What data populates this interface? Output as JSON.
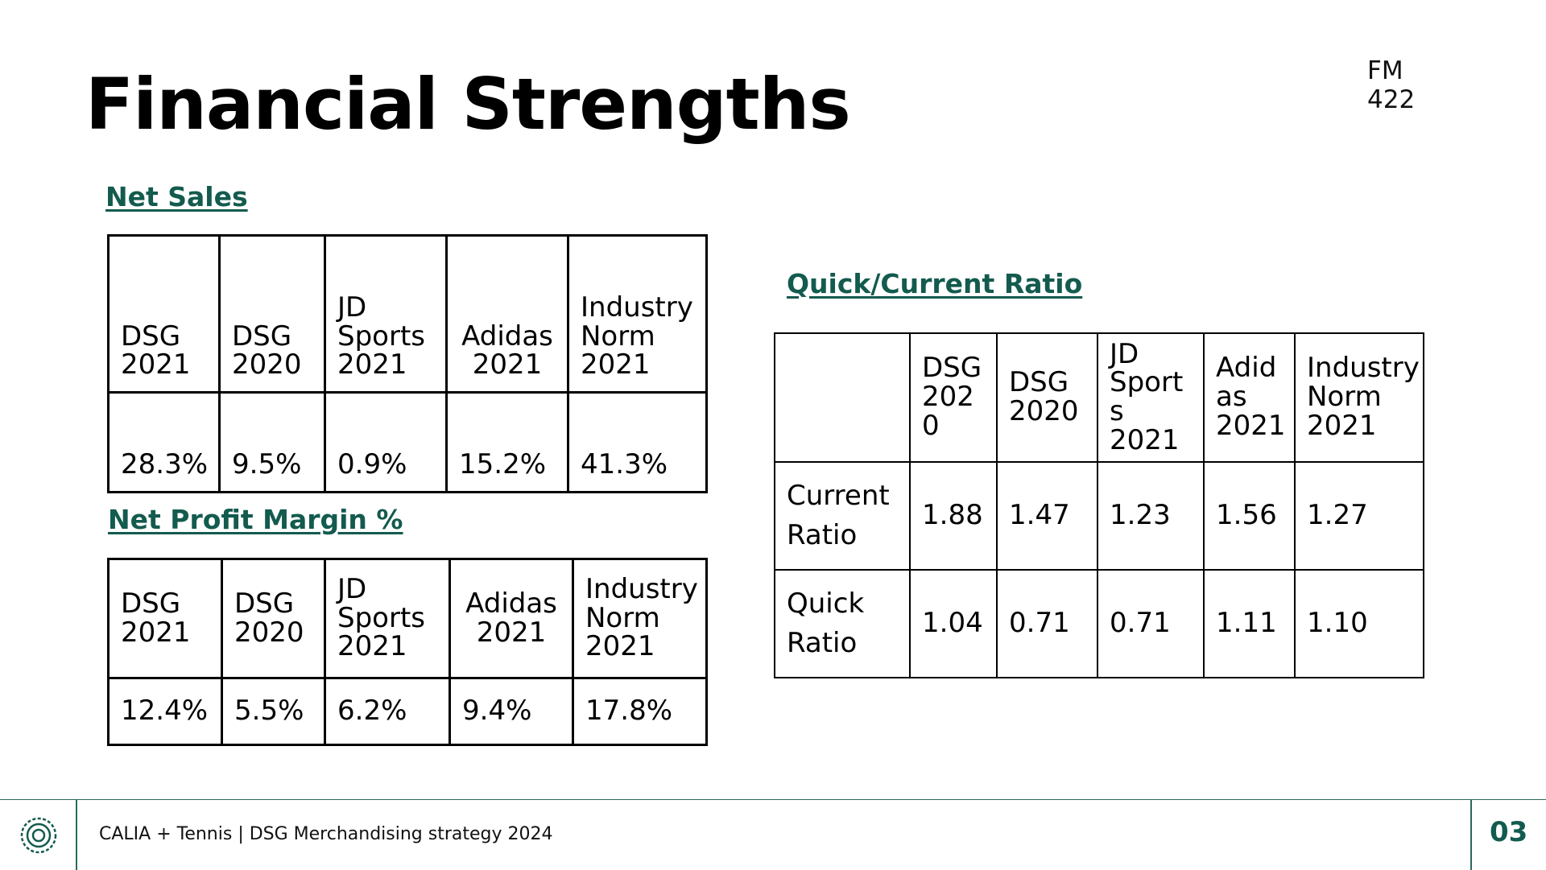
{
  "course_code": "FM 422",
  "title": "Financial Strengths",
  "net_sales": {
    "heading": "Net Sales",
    "headers": [
      "DSG\n2021",
      "DSG\n2020",
      "JD\nSports\n2021",
      "Adidas\n2021",
      "Industry\nNorm\n2021"
    ],
    "values": [
      "28.3%",
      "9.5%",
      "0.9%",
      "15.2%",
      "41.3%"
    ]
  },
  "net_profit_margin": {
    "heading": "Net Profit Margin %",
    "headers": [
      "DSG\n2021",
      "DSG\n2020",
      "JD\nSports\n2021",
      "Adidas\n2021",
      "Industry\nNorm\n2021"
    ],
    "values": [
      "12.4%",
      "5.5%",
      "6.2%",
      "9.4%",
      "17.8%"
    ]
  },
  "quick_current": {
    "heading": "Quick/Current Ratio",
    "headers": [
      "",
      "DSG\n202\n0",
      "DSG\n2020",
      "JD\nSport\ns 2021",
      "Adid\nas\n2021",
      "Industry\nNorm\n2021"
    ],
    "rows": [
      {
        "label": "Current\nRatio",
        "values": [
          "1.88",
          "1.47",
          "1.23",
          "1.56",
          "1.27"
        ]
      },
      {
        "label": "Quick\nRatio",
        "values": [
          "1.04",
          "0.71",
          "0.71",
          "1.11",
          "1.10"
        ]
      }
    ]
  },
  "footer": {
    "text": "CALIA + Tennis | DSG Merchandising strategy 2024",
    "page_number": "03",
    "accent_color": "#135b4e",
    "logo_icon": "wreath-logo-icon"
  }
}
